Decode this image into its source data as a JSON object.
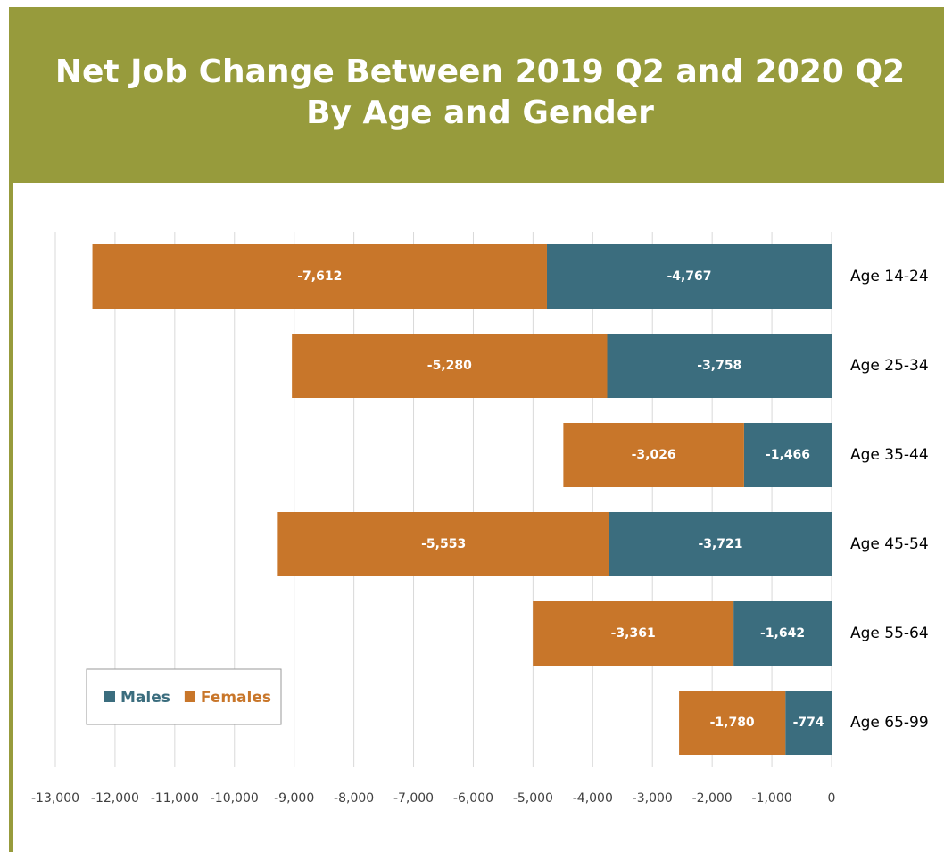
{
  "chart_data": {
    "type": "stacked-barh",
    "title": [
      "Net Job Change Between 2019 Q2 and 2020 Q2",
      "By Age and Gender"
    ],
    "categories": [
      "Age 14-24",
      "Age 25-34",
      "Age 35-44",
      "Age 45-54",
      "Age 55-64",
      "Age 65-99"
    ],
    "series": [
      {
        "name": "Males",
        "color": "#3b6d7e",
        "values": [
          -4767,
          -3758,
          -1466,
          -3721,
          -1642,
          -774
        ],
        "value_labels": [
          "-4,767",
          "-3,758",
          "-1,466",
          "-3,721",
          "-1,642",
          "-774"
        ]
      },
      {
        "name": "Females",
        "color": "#c8762a",
        "values": [
          -7612,
          -5280,
          -3026,
          -5553,
          -3361,
          -1780
        ],
        "value_labels": [
          "-7,612",
          "-5,280",
          "-3,026",
          "-5,553",
          "-3,361",
          "-1,780"
        ]
      }
    ],
    "xlim": [
      -13000,
      0
    ],
    "xticks": [
      {
        "value": -13000,
        "label": "-13,000"
      },
      {
        "value": -12000,
        "label": "-12,000"
      },
      {
        "value": -11000,
        "label": "-11,000"
      },
      {
        "value": -10000,
        "label": "-10,000"
      },
      {
        "value": -9000,
        "label": "-9,000"
      },
      {
        "value": -8000,
        "label": "-8,000"
      },
      {
        "value": -7000,
        "label": "-7,000"
      },
      {
        "value": -6000,
        "label": "-6,000"
      },
      {
        "value": -5000,
        "label": "-5,000"
      },
      {
        "value": -4000,
        "label": "-4,000"
      },
      {
        "value": -3000,
        "label": "-3,000"
      },
      {
        "value": -2000,
        "label": "-2,000"
      },
      {
        "value": -1000,
        "label": "-1,000"
      },
      0
    ],
    "grid": true,
    "legend": "lower left"
  }
}
